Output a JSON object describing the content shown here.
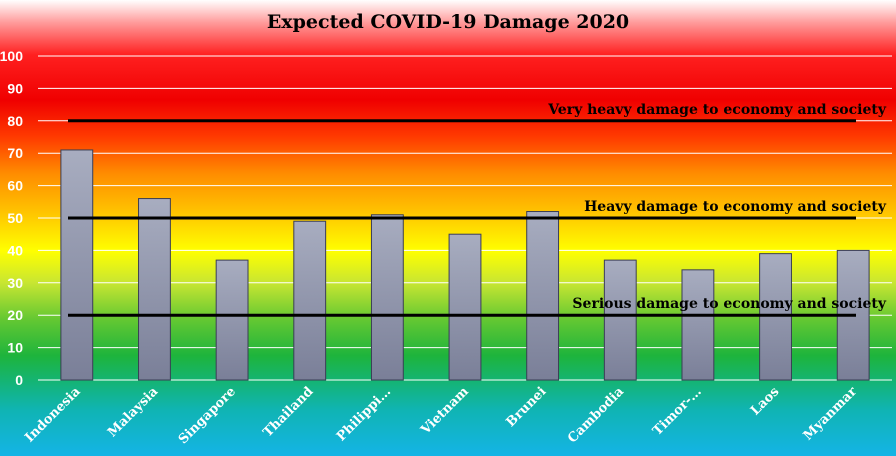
{
  "chart_data": {
    "type": "bar",
    "title": "Expected COVID-19 Damage 2020",
    "xlabel": "",
    "ylabel": "",
    "categories": [
      "Indonesia",
      "Malaysia",
      "Singapore",
      "Thailand",
      "Philippi…",
      "Vietnam",
      "Brunei",
      "Cambodia",
      "Timor-…",
      "Laos",
      "Myanmar"
    ],
    "values": [
      71,
      56,
      37,
      49,
      51,
      45,
      52,
      37,
      34,
      39,
      40
    ],
    "ylim": [
      0,
      100
    ],
    "yticks": [
      0,
      10,
      20,
      30,
      40,
      50,
      60,
      70,
      80,
      90,
      100
    ],
    "grid": true,
    "bar_color": "#8a8fa8",
    "reference_lines": [
      {
        "value": 80,
        "label": "Very heavy damage to economy and society"
      },
      {
        "value": 50,
        "label": "Heavy damage to economy and society"
      },
      {
        "value": 20,
        "label": "Serious damage to economy and society"
      }
    ]
  }
}
